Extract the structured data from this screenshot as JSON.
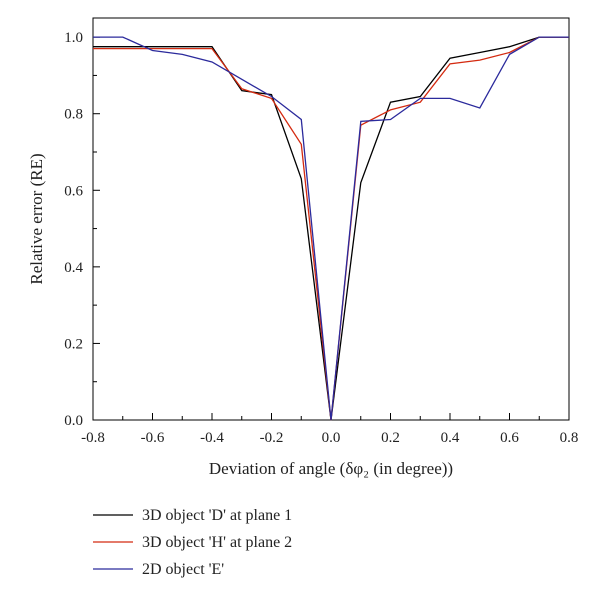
{
  "chart_data": {
    "type": "line",
    "title": "",
    "xlabel": "Deviation of angle (δφ₂ (in degree))",
    "ylabel": "Relative error (RE)",
    "xlim": [
      -0.8,
      0.8
    ],
    "ylim": [
      0.0,
      1.05
    ],
    "xticks": [
      "-0.8",
      "-0.6",
      "-0.4",
      "-0.2",
      "0.0",
      "0.2",
      "0.4",
      "0.6",
      "0.8"
    ],
    "yticks": [
      "0.0",
      "0.2",
      "0.4",
      "0.6",
      "0.8",
      "1.0"
    ],
    "grid": false,
    "legend_position": "below-plot",
    "series": [
      {
        "name": "3D object 'D' at plane 1",
        "color": "#000000",
        "x": [
          -0.8,
          -0.7,
          -0.6,
          -0.5,
          -0.4,
          -0.3,
          -0.2,
          -0.1,
          0.0,
          0.1,
          0.2,
          0.3,
          0.4,
          0.5,
          0.6,
          0.7,
          0.8
        ],
        "y": [
          0.975,
          0.975,
          0.975,
          0.975,
          0.975,
          0.86,
          0.85,
          0.63,
          0.0,
          0.62,
          0.83,
          0.845,
          0.945,
          0.96,
          0.975,
          1.0,
          1.0
        ]
      },
      {
        "name": "3D object 'H' at plane 2",
        "color": "#d42a10",
        "x": [
          -0.8,
          -0.7,
          -0.6,
          -0.5,
          -0.4,
          -0.3,
          -0.2,
          -0.1,
          0.0,
          0.1,
          0.2,
          0.3,
          0.4,
          0.5,
          0.6,
          0.7,
          0.8
        ],
        "y": [
          0.97,
          0.97,
          0.97,
          0.97,
          0.97,
          0.865,
          0.84,
          0.72,
          0.0,
          0.77,
          0.81,
          0.83,
          0.93,
          0.94,
          0.96,
          1.0,
          1.0
        ]
      },
      {
        "name": "2D object 'E'",
        "color": "#2b2a9c",
        "x": [
          -0.8,
          -0.7,
          -0.6,
          -0.5,
          -0.4,
          -0.3,
          -0.2,
          -0.1,
          0.0,
          0.1,
          0.2,
          0.3,
          0.4,
          0.5,
          0.6,
          0.7,
          0.8
        ],
        "y": [
          1.0,
          1.0,
          0.965,
          0.955,
          0.935,
          0.89,
          0.845,
          0.785,
          0.0,
          0.78,
          0.785,
          0.84,
          0.84,
          0.815,
          0.955,
          1.0,
          1.0
        ]
      }
    ]
  }
}
